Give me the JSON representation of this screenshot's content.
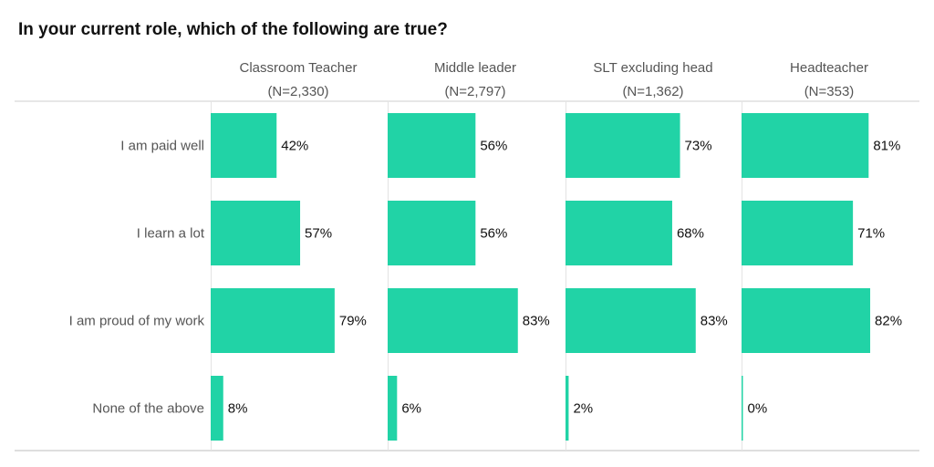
{
  "chart_data": {
    "type": "bar",
    "orientation": "horizontal",
    "layout": "small-multiples",
    "title": "In your current role, which of the following are true?",
    "categories": [
      "I am paid well",
      "I learn a lot",
      "I am proud of my work",
      "None of the above"
    ],
    "value_suffix": "%",
    "xlim": [
      0,
      100
    ],
    "grid": false,
    "legend": "none",
    "bar_color": "#21d3a6",
    "series": [
      {
        "name": "Classroom Teacher",
        "n_label": "(N=2,330)",
        "values": [
          42,
          57,
          79,
          8
        ]
      },
      {
        "name": "Middle leader",
        "n_label": "(N=2,797)",
        "values": [
          56,
          56,
          83,
          6
        ]
      },
      {
        "name": "SLT excluding head",
        "n_label": "(N=1,362)",
        "values": [
          73,
          68,
          83,
          2
        ]
      },
      {
        "name": "Headteacher",
        "n_label": "(N=353)",
        "values": [
          81,
          71,
          82,
          0
        ]
      }
    ]
  }
}
